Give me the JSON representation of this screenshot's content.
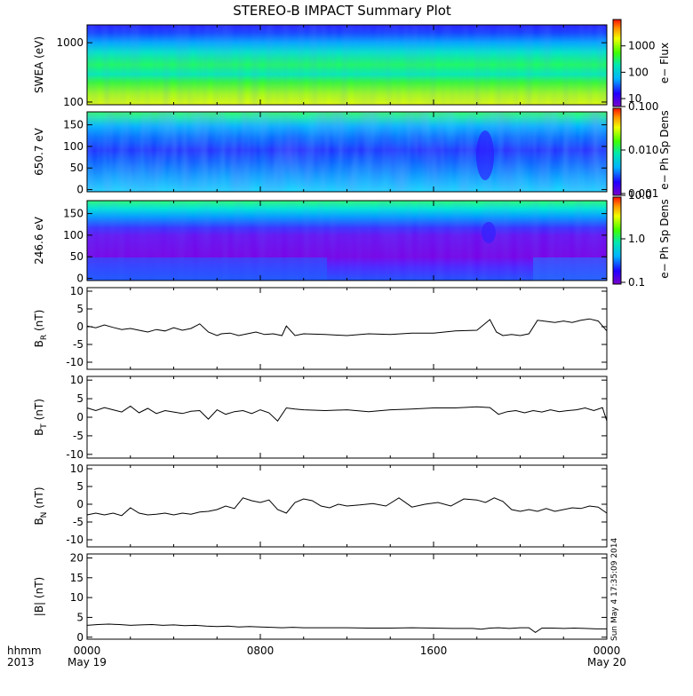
{
  "title": "STEREO-B IMPACT Summary Plot",
  "time_axis": {
    "label_row1": "hhmm",
    "label_row2": "2013",
    "ticks": [
      {
        "hours": 0,
        "label": "0000",
        "date": "May 19"
      },
      {
        "hours": 8,
        "label": "0800",
        "date": ""
      },
      {
        "hours": 16,
        "label": "1600",
        "date": ""
      },
      {
        "hours": 24,
        "label": "0000",
        "date": "May 20"
      }
    ],
    "xlim_hours": [
      0,
      24
    ]
  },
  "timestamp": "Sun May  4 17:35:09 2014",
  "chart_data": [
    {
      "type": "heatmap",
      "ylabel": "SWEA (eV)",
      "yscale": "log",
      "ylim": [
        90,
        2000
      ],
      "yticks": [
        {
          "value": 1000,
          "label": "1000"
        },
        {
          "value": 100,
          "label": "100"
        }
      ],
      "colorbar": {
        "label": "e− Flux",
        "scale": "log",
        "range": [
          5,
          10000
        ],
        "ticks": [
          {
            "value": 1000,
            "label": "1000"
          },
          {
            "value": 100,
            "label": "100"
          },
          {
            "value": 10,
            "label": "10"
          }
        ]
      }
    },
    {
      "type": "heatmap",
      "ylabel": "650.7 eV",
      "yscale": "linear",
      "ylim": [
        -5,
        180
      ],
      "yticks": [
        {
          "value": 150,
          "label": "150"
        },
        {
          "value": 100,
          "label": "100"
        },
        {
          "value": 50,
          "label": "50"
        },
        {
          "value": 0,
          "label": "0"
        }
      ],
      "colorbar": {
        "label": "e− Ph Sp Dens",
        "scale": "log",
        "range": [
          0.001,
          0.1
        ],
        "ticks": [
          {
            "value": 0.1,
            "label": "0.100"
          },
          {
            "value": 0.01,
            "label": "0.010"
          },
          {
            "value": 0.001,
            "label": "0.001"
          }
        ]
      }
    },
    {
      "type": "heatmap",
      "ylabel": "246.6 eV",
      "yscale": "linear",
      "ylim": [
        -5,
        180
      ],
      "yticks": [
        {
          "value": 150,
          "label": "150"
        },
        {
          "value": 100,
          "label": "100"
        },
        {
          "value": 50,
          "label": "50"
        },
        {
          "value": 0,
          "label": "0"
        }
      ],
      "colorbar": {
        "label": "e− Ph Sp Dens",
        "scale": "log",
        "range": [
          0.1,
          10
        ],
        "ticks": [
          {
            "value": 10,
            "label": "10.0"
          },
          {
            "value": 1,
            "label": "1.0"
          },
          {
            "value": 0.1,
            "label": "0.1"
          }
        ]
      }
    },
    {
      "type": "line",
      "ylabel": "B",
      "ylabel_sub": "R",
      "ylabel_unit": " (nT)",
      "ylim": [
        -12,
        11
      ],
      "yticks": [
        10,
        5,
        0,
        -5,
        -10
      ],
      "series": [
        {
          "x": [
            0,
            0.4,
            0.8,
            1.2,
            1.6,
            2.0,
            2.4,
            2.8,
            3.2,
            3.6,
            4.0,
            4.4,
            4.8,
            5.2,
            5.6,
            6.0,
            6.2,
            6.6,
            7.0,
            7.4,
            7.8,
            8.2,
            8.6,
            9.0,
            9.2,
            9.6,
            10.0,
            11,
            12,
            13,
            14,
            15,
            16,
            17,
            18,
            18.6,
            18.9,
            19.2,
            19.6,
            20.0,
            20.4,
            20.8,
            21.2,
            21.6,
            22.0,
            22.4,
            22.8,
            23.2,
            23.6,
            24
          ],
          "y": [
            0.2,
            -0.3,
            0.5,
            -0.2,
            -0.8,
            -0.5,
            -1.0,
            -1.5,
            -0.8,
            -1.2,
            -0.3,
            -1.0,
            -0.5,
            0.8,
            -1.5,
            -2.5,
            -2.0,
            -1.8,
            -2.5,
            -2.0,
            -1.5,
            -2.2,
            -2.0,
            -2.5,
            0.2,
            -2.5,
            -2.0,
            -2.2,
            -2.5,
            -2.0,
            -2.2,
            -1.8,
            -1.8,
            -1.2,
            -1.0,
            2.0,
            -1.5,
            -2.5,
            -2.2,
            -2.5,
            -2.0,
            1.8,
            1.5,
            1.2,
            1.6,
            1.2,
            1.8,
            2.2,
            1.6,
            -1.2
          ]
        }
      ]
    },
    {
      "type": "line",
      "ylabel": "B",
      "ylabel_sub": "T",
      "ylabel_unit": " (nT)",
      "ylim": [
        -11,
        11
      ],
      "yticks": [
        10,
        5,
        0,
        -5,
        -10
      ],
      "series": [
        {
          "x": [
            0,
            0.4,
            0.8,
            1.2,
            1.6,
            2.0,
            2.4,
            2.8,
            3.2,
            3.6,
            4.0,
            4.4,
            4.8,
            5.2,
            5.6,
            6.0,
            6.4,
            6.8,
            7.2,
            7.6,
            8.0,
            8.4,
            8.8,
            9.2,
            9.6,
            10.0,
            11,
            12,
            13,
            14,
            15,
            16,
            17,
            18,
            18.6,
            19.0,
            19.4,
            19.8,
            20.2,
            20.6,
            21.0,
            21.4,
            21.8,
            22.2,
            22.6,
            23.0,
            23.4,
            23.8,
            24
          ],
          "y": [
            2.5,
            1.8,
            2.6,
            2.0,
            1.4,
            3.0,
            1.2,
            2.4,
            1.0,
            1.8,
            1.4,
            1.0,
            1.6,
            1.8,
            -0.5,
            2.0,
            0.8,
            1.5,
            1.8,
            1.0,
            2.0,
            1.2,
            -1.0,
            2.5,
            2.2,
            2.0,
            1.8,
            2.0,
            1.5,
            2.0,
            2.2,
            2.5,
            2.5,
            2.8,
            2.6,
            0.8,
            1.5,
            1.8,
            1.2,
            1.8,
            1.4,
            2.0,
            1.5,
            1.8,
            2.0,
            2.5,
            1.8,
            2.6,
            -1.0
          ]
        }
      ]
    },
    {
      "type": "line",
      "ylabel": "B",
      "ylabel_sub": "N",
      "ylabel_unit": " (nT)",
      "ylim": [
        -12,
        11
      ],
      "yticks": [
        10,
        5,
        0,
        -5,
        -10
      ],
      "series": [
        {
          "x": [
            0,
            0.4,
            0.8,
            1.2,
            1.6,
            2.0,
            2.4,
            2.8,
            3.2,
            3.6,
            4.0,
            4.4,
            4.8,
            5.2,
            5.6,
            6.0,
            6.4,
            6.8,
            7.2,
            7.6,
            8.0,
            8.4,
            8.8,
            9.2,
            9.6,
            10.0,
            10.4,
            10.8,
            11.2,
            11.6,
            12,
            12.6,
            13.2,
            13.8,
            14.4,
            15.0,
            15.6,
            16.2,
            16.8,
            17.4,
            18.0,
            18.4,
            18.8,
            19.2,
            19.6,
            20.0,
            20.4,
            20.8,
            21.2,
            21.6,
            22.0,
            22.4,
            22.8,
            23.2,
            23.6,
            24
          ],
          "y": [
            -3.0,
            -2.5,
            -3.0,
            -2.5,
            -3.2,
            -1.0,
            -2.5,
            -3.0,
            -2.8,
            -2.5,
            -3.0,
            -2.5,
            -2.8,
            -2.2,
            -2.0,
            -1.5,
            -0.5,
            -1.2,
            1.8,
            1.0,
            0.5,
            1.2,
            -1.5,
            -2.5,
            0.5,
            1.5,
            1.0,
            -0.5,
            -1.0,
            0.0,
            -0.5,
            -0.2,
            0.2,
            -0.5,
            1.8,
            -0.8,
            0.0,
            0.5,
            -0.5,
            1.5,
            1.2,
            0.5,
            1.8,
            0.8,
            -1.5,
            -2.0,
            -1.5,
            -2.0,
            -1.2,
            -2.0,
            -1.5,
            -1.0,
            -1.2,
            -0.5,
            -0.8,
            -2.5
          ]
        }
      ]
    },
    {
      "type": "line",
      "ylabel": "|B| (nT)",
      "ylim": [
        -0.5,
        21
      ],
      "yticks": [
        20,
        15,
        10,
        5,
        0
      ],
      "series": [
        {
          "x": [
            0,
            0.5,
            1,
            1.5,
            2,
            2.5,
            3,
            3.5,
            4,
            4.5,
            5,
            5.5,
            6,
            6.5,
            7,
            7.5,
            8,
            8.5,
            9,
            9.5,
            10,
            11,
            12,
            13,
            14,
            15,
            16,
            17,
            17.8,
            18.2,
            18.6,
            19,
            19.5,
            20,
            20.4,
            20.7,
            21,
            21.5,
            22,
            22.5,
            23,
            23.5,
            24
          ],
          "y": [
            3.0,
            3.2,
            3.3,
            3.2,
            3.0,
            3.1,
            3.2,
            3.0,
            3.1,
            2.9,
            3.0,
            2.8,
            2.7,
            2.8,
            2.6,
            2.7,
            2.6,
            2.5,
            2.4,
            2.5,
            2.4,
            2.4,
            2.4,
            2.3,
            2.3,
            2.4,
            2.3,
            2.2,
            2.2,
            2.0,
            2.3,
            2.4,
            2.2,
            2.4,
            2.4,
            1.2,
            2.3,
            2.3,
            2.2,
            2.3,
            2.2,
            2.1,
            2.1
          ]
        }
      ]
    }
  ]
}
